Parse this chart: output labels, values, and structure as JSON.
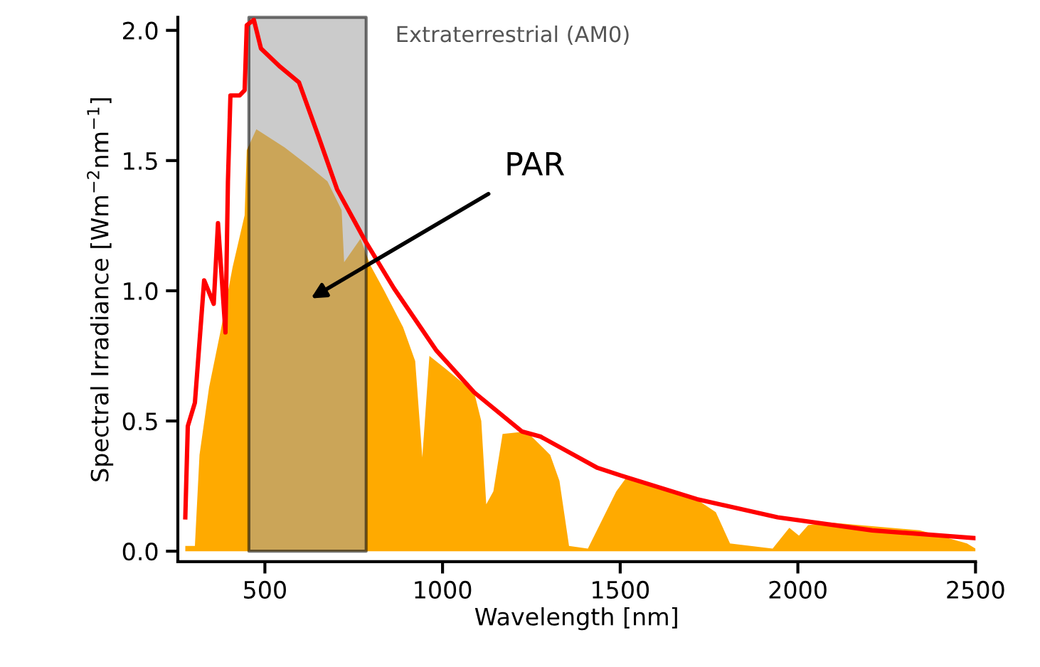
{
  "chart_data": {
    "type": "area",
    "xlabel": "Wavelength [nm]",
    "ylabel": "Spectral Irradiance [Wm$^{−2}$nm$^{−1}$]",
    "xlim": [
      255,
      2500
    ],
    "xticks": [
      500,
      1000,
      1500,
      2000,
      2500
    ],
    "ylim": [
      -0.04,
      2.05
    ],
    "yticks": [
      {
        "value": 0,
        "label": "0.0"
      },
      {
        "value": 0.5,
        "label": "0.5"
      },
      {
        "value": 1,
        "label": "1.0"
      },
      {
        "value": 1.5,
        "label": "1.5"
      },
      {
        "value": 2,
        "label": "2.0"
      }
    ],
    "grid": false,
    "legend": false,
    "series": [
      {
        "type": "line",
        "color": "#ff0000",
        "x": [
          276,
          283,
          303,
          323,
          329,
          356,
          368,
          389,
          396,
          403,
          429,
          443,
          449,
          469,
          489,
          543,
          596,
          649,
          703,
          783,
          863,
          983,
          1089,
          1223,
          1276,
          1436,
          1503,
          1716,
          1943,
          2209,
          2500
        ],
        "values": [
          0.13,
          0.48,
          0.57,
          0.93,
          1.04,
          0.95,
          1.26,
          0.84,
          1.42,
          1.75,
          1.75,
          1.77,
          2.02,
          2.04,
          1.93,
          1.86,
          1.8,
          1.6,
          1.39,
          1.19,
          1.01,
          0.77,
          0.61,
          0.46,
          0.44,
          0.32,
          0.29,
          0.2,
          0.13,
          0.08,
          0.05
        ]
      },
      {
        "color": "#ffaa00",
        "x": [
          276,
          303,
          316,
          343,
          376,
          409,
          443,
          449,
          476,
          556,
          623,
          676,
          716,
          723,
          769,
          796,
          836,
          889,
          923,
          943,
          963,
          1009,
          1089,
          1109,
          1123,
          1143,
          1169,
          1236,
          1303,
          1329,
          1356,
          1409,
          1449,
          1489,
          1516,
          1609,
          1703,
          1769,
          1809,
          1929,
          1976,
          2003,
          2029,
          2089,
          2343,
          2476,
          2500
        ],
        "values": [
          0.02,
          0.02,
          0.37,
          0.63,
          0.85,
          1.09,
          1.29,
          1.54,
          1.62,
          1.55,
          1.48,
          1.42,
          1.31,
          1.11,
          1.2,
          1.1,
          1.0,
          0.86,
          0.73,
          0.36,
          0.75,
          0.7,
          0.61,
          0.5,
          0.18,
          0.23,
          0.45,
          0.46,
          0.37,
          0.27,
          0.02,
          0.01,
          0.12,
          0.23,
          0.28,
          0.25,
          0.21,
          0.15,
          0.03,
          0.01,
          0.09,
          0.06,
          0.1,
          0.11,
          0.08,
          0.03,
          0.01
        ]
      }
    ],
    "bands": [
      {
        "axis": "x",
        "from": 455,
        "to": 785,
        "color": "#a0a0a0",
        "label": "PAR"
      }
    ],
    "annotations": [
      "Extraterrestrial (AM0)"
    ]
  }
}
